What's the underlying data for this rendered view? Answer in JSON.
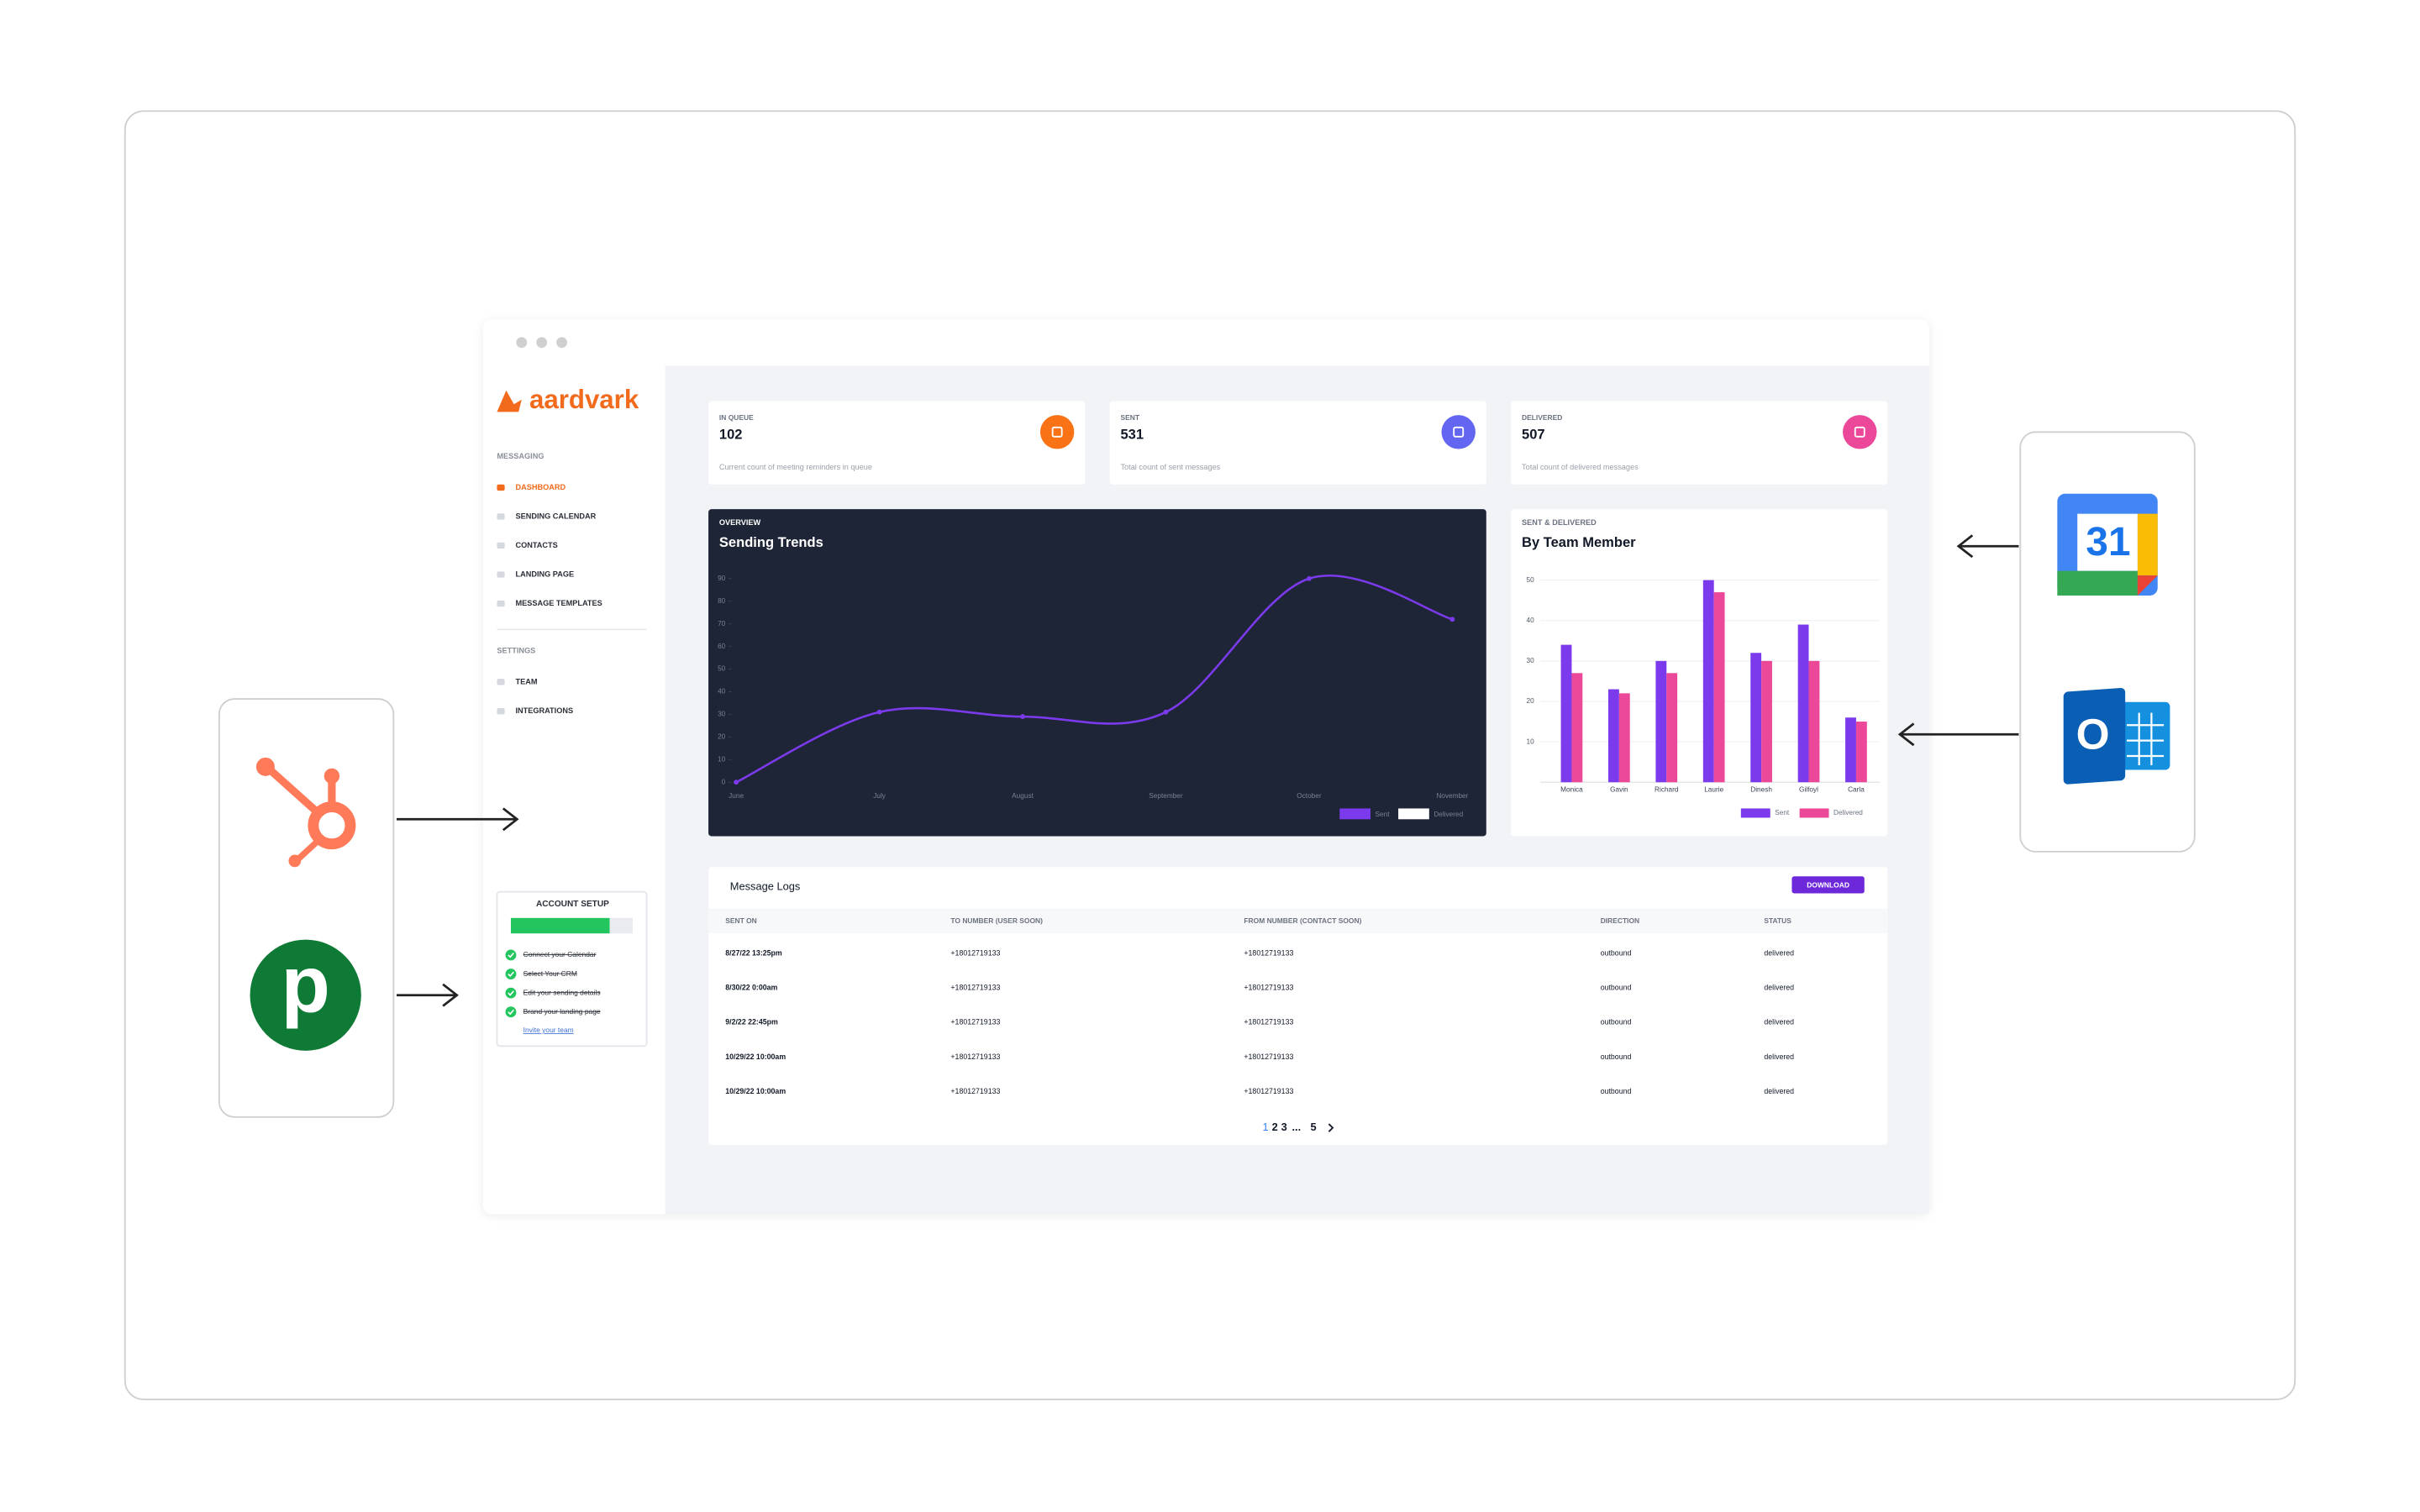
{
  "sidebar": {
    "logo": "aardvark",
    "sections": [
      {
        "title": "MESSAGING",
        "items": [
          "DASHBOARD",
          "SENDING CALENDAR",
          "CONTACTS",
          "LANDING PAGE",
          "MESSAGE TEMPLATES"
        ]
      },
      {
        "title": "SETTINGS",
        "items": [
          "TEAM",
          "INTEGRATIONS"
        ]
      }
    ]
  },
  "account_setup": {
    "title": "ACCOUNT SETUP",
    "tasks": [
      "Connect your Calendar",
      "Select Your CRM",
      "Edit your sending details",
      "Brand your landing page"
    ],
    "link": "Invite your team"
  },
  "stats": [
    {
      "label": "IN QUEUE",
      "value": "102",
      "description": "Current count of meeting reminders in queue",
      "color": "#f97316"
    },
    {
      "label": "SENT",
      "value": "531",
      "description": "Total count of sent messages",
      "color": "#6366f1"
    },
    {
      "label": "DELIVERED",
      "value": "507",
      "description": "Total count of delivered messages",
      "color": "#ec4899"
    }
  ],
  "chart_data": [
    {
      "type": "line",
      "label": "OVERVIEW",
      "title": "Sending Trends",
      "categories": [
        "June",
        "July",
        "August",
        "September",
        "October",
        "November"
      ],
      "values": [
        0,
        31,
        29,
        31,
        90,
        72
      ],
      "color": "#7c3aed",
      "legend": [
        {
          "name": "Sent",
          "color": "#7c3aed"
        },
        {
          "name": "Delivered",
          "color": "#ffffff"
        }
      ],
      "ylim": [
        0,
        90
      ],
      "yticks": [
        0,
        10,
        20,
        30,
        40,
        50,
        60,
        70,
        80,
        90
      ]
    },
    {
      "type": "bar",
      "label": "SENT & DELIVERED",
      "title": "By Team Member",
      "categories": [
        "Monica",
        "Gavin",
        "Richard",
        "Laurie",
        "Dinesh",
        "Gilfoyl",
        "Carla"
      ],
      "series": [
        {
          "name": "Sent",
          "color": "#7c3aed",
          "values": [
            34,
            23,
            30,
            50,
            32,
            39,
            16
          ]
        },
        {
          "name": "Delivered",
          "color": "#ec4899",
          "values": [
            27,
            22,
            27,
            47,
            30,
            30,
            15
          ]
        }
      ],
      "ylim": [
        0,
        50
      ],
      "yticks": [
        10,
        20,
        30,
        40,
        50
      ],
      "grid": true
    }
  ],
  "table": {
    "title": "Message Logs",
    "button": "DOWNLOAD",
    "columns": [
      "SENT ON",
      "TO NUMBER (USER SOON)",
      "FROM NUMBER (CONTACT SOON)",
      "DIRECTION",
      "STATUS"
    ],
    "rows": [
      [
        "8/27/22 13:25pm",
        "+18012719133",
        "+18012719133",
        "outbound",
        "delivered"
      ],
      [
        "8/30/22 0:00am",
        "+18012719133",
        "+18012719133",
        "outbound",
        "delivered"
      ],
      [
        "9/2/22 22:45pm",
        "+18012719133",
        "+18012719133",
        "outbound",
        "delivered"
      ],
      [
        "10/29/22 10:00am",
        "+18012719133",
        "+18012719133",
        "outbound",
        "delivered"
      ],
      [
        "10/29/22 10:00am",
        "+18012719133",
        "+18012719133",
        "outbound",
        "delivered"
      ]
    ],
    "pagination": [
      "1",
      "2",
      "3",
      "...",
      "5"
    ]
  },
  "logos": {
    "pipedrive": "p",
    "google_calendar": "31",
    "outlook": "O"
  }
}
